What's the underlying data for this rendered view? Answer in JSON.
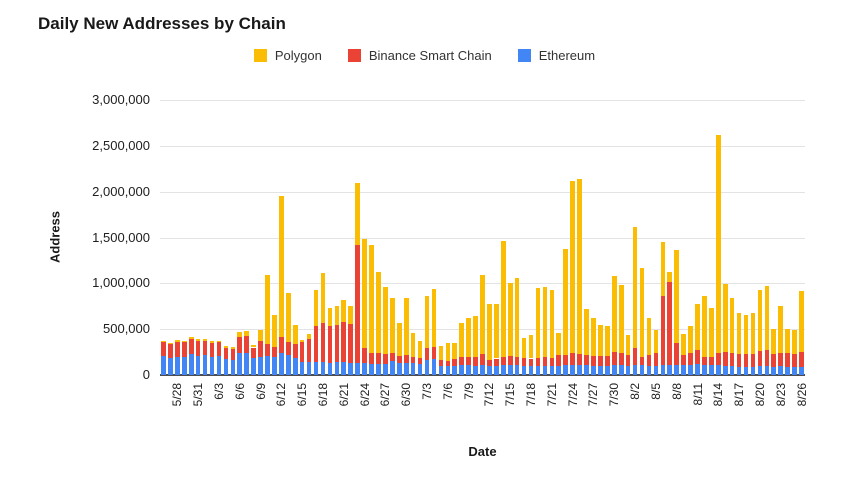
{
  "title": "Daily New Addresses by Chain",
  "legend": {
    "items": [
      {
        "label": "Polygon",
        "color": "#FBBC04"
      },
      {
        "label": "Binance Smart Chain",
        "color": "#EA4335"
      },
      {
        "label": "Ethereum",
        "color": "#4285F4"
      }
    ]
  },
  "axes": {
    "y_title": "Address",
    "x_title": "Date",
    "y_tick_labels": [
      "0",
      "500,000",
      "1,000,000",
      "1,500,000",
      "2,000,000",
      "2,500,000",
      "3,000,000"
    ]
  },
  "chart_data": {
    "type": "bar",
    "stacked": true,
    "title": "Daily New Addresses by Chain",
    "xlabel": "Date",
    "ylabel": "Address",
    "ylim": [
      0,
      3000000
    ],
    "grid": true,
    "legend_position": "top",
    "x": [
      "5/26",
      "5/27",
      "5/28",
      "5/29",
      "5/30",
      "5/31",
      "6/1",
      "6/2",
      "6/3",
      "6/4",
      "6/5",
      "6/6",
      "6/7",
      "6/8",
      "6/9",
      "6/10",
      "6/11",
      "6/12",
      "6/13",
      "6/14",
      "6/15",
      "6/16",
      "6/17",
      "6/18",
      "6/19",
      "6/20",
      "6/21",
      "6/22",
      "6/23",
      "6/24",
      "6/25",
      "6/26",
      "6/27",
      "6/28",
      "6/29",
      "6/30",
      "7/1",
      "7/2",
      "7/3",
      "7/4",
      "7/5",
      "7/6",
      "7/7",
      "7/8",
      "7/9",
      "7/10",
      "7/11",
      "7/12",
      "7/13",
      "7/14",
      "7/15",
      "7/16",
      "7/17",
      "7/18",
      "7/19",
      "7/20",
      "7/21",
      "7/22",
      "7/23",
      "7/24",
      "7/25",
      "7/26",
      "7/27",
      "7/28",
      "7/29",
      "7/30",
      "7/31",
      "8/1",
      "8/2",
      "8/3",
      "8/4",
      "8/5",
      "8/6",
      "8/7",
      "8/8",
      "8/9",
      "8/10",
      "8/11",
      "8/12",
      "8/13",
      "8/14",
      "8/15",
      "8/16",
      "8/17",
      "8/18",
      "8/19",
      "8/20",
      "8/21",
      "8/22",
      "8/23",
      "8/24",
      "8/25",
      "8/26"
    ],
    "x_tick_labels": [
      "5/28",
      "5/31",
      "6/3",
      "6/6",
      "6/9",
      "6/12",
      "6/15",
      "6/18",
      "6/21",
      "6/24",
      "6/27",
      "6/30",
      "7/3",
      "7/6",
      "7/9",
      "7/12",
      "7/15",
      "7/18",
      "7/21",
      "7/24",
      "7/27",
      "7/30",
      "8/2",
      "8/5",
      "8/8",
      "8/11",
      "8/14",
      "8/17",
      "8/20",
      "8/23",
      "8/26"
    ],
    "x_tick_start_index": 2,
    "x_tick_every": 3,
    "series": [
      {
        "name": "Ethereum",
        "color": "#4285F4",
        "values": [
          205000,
          185000,
          200000,
          195000,
          225000,
          205000,
          215000,
          200000,
          205000,
          175000,
          165000,
          235000,
          240000,
          185000,
          195000,
          210000,
          200000,
          235000,
          220000,
          190000,
          145000,
          140000,
          145000,
          145000,
          130000,
          145000,
          140000,
          130000,
          130000,
          130000,
          120000,
          120000,
          125000,
          150000,
          130000,
          135000,
          128000,
          120000,
          165000,
          170000,
          100000,
          95000,
          100000,
          105000,
          105000,
          100000,
          105000,
          100000,
          100000,
          105000,
          105000,
          105000,
          100000,
          100000,
          100000,
          100000,
          100000,
          100000,
          105000,
          110000,
          110000,
          105000,
          100000,
          100000,
          100000,
          105000,
          105000,
          100000,
          105000,
          105000,
          100000,
          100000,
          110000,
          105000,
          110000,
          105000,
          110000,
          115000,
          105000,
          110000,
          110000,
          100000,
          95000,
          90000,
          90000,
          90000,
          100000,
          100000,
          90000,
          95000,
          90000,
          90000,
          90000
        ]
      },
      {
        "name": "Binance Smart Chain",
        "color": "#EA4335",
        "values": [
          160000,
          150000,
          165000,
          160000,
          170000,
          170000,
          155000,
          150000,
          150000,
          125000,
          120000,
          185000,
          190000,
          115000,
          180000,
          125000,
          105000,
          185000,
          145000,
          150000,
          210000,
          250000,
          385000,
          420000,
          400000,
          400000,
          440000,
          430000,
          1290000,
          165000,
          120000,
          115000,
          105000,
          90000,
          80000,
          85000,
          73000,
          67000,
          130000,
          140000,
          65000,
          60000,
          75000,
          90000,
          95000,
          100000,
          125000,
          65000,
          80000,
          95000,
          100000,
          95000,
          85000,
          80000,
          90000,
          95000,
          90000,
          115000,
          110000,
          125000,
          120000,
          115000,
          110000,
          105000,
          105000,
          150000,
          140000,
          120000,
          185000,
          95000,
          120000,
          135000,
          750000,
          915000,
          240000,
          115000,
          130000,
          160000,
          95000,
          90000,
          130000,
          150000,
          145000,
          140000,
          135000,
          140000,
          160000,
          170000,
          140000,
          150000,
          145000,
          140000,
          165000
        ]
      },
      {
        "name": "Polygon",
        "color": "#FBBC04",
        "values": [
          10000,
          10000,
          15000,
          15000,
          20000,
          15000,
          25000,
          20000,
          20000,
          15000,
          20000,
          45000,
          50000,
          25000,
          115000,
          760000,
          355000,
          1530000,
          530000,
          210000,
          25000,
          55000,
          400000,
          550000,
          200000,
          205000,
          240000,
          195000,
          680000,
          1190000,
          1175000,
          885000,
          730000,
          600000,
          360000,
          620000,
          255000,
          185000,
          565000,
          630000,
          155000,
          195000,
          175000,
          370000,
          420000,
          440000,
          865000,
          605000,
          595000,
          1260000,
          795000,
          860000,
          215000,
          260000,
          760000,
          765000,
          740000,
          240000,
          1165000,
          1885000,
          1910000,
          500000,
          410000,
          345000,
          330000,
          820000,
          740000,
          220000,
          1330000,
          970000,
          400000,
          260000,
          590000,
          105000,
          1010000,
          225000,
          290000,
          500000,
          660000,
          530000,
          2380000,
          740000,
          600000,
          445000,
          430000,
          445000,
          670000,
          705000,
          275000,
          505000,
          270000,
          265000,
          660000
        ]
      }
    ]
  }
}
